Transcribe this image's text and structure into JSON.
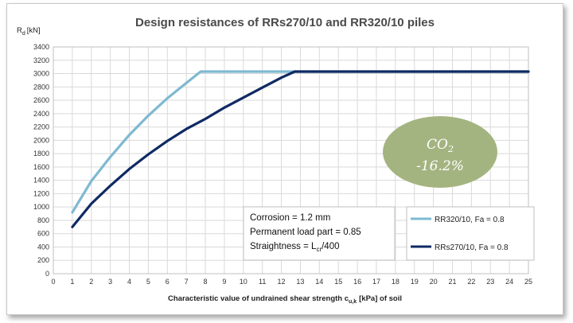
{
  "colors": {
    "rr320": "#7fb9d1",
    "rrs270": "#0f2a63",
    "grid": "#d9d9d9",
    "badge": "#a4b480"
  },
  "chart_data": {
    "type": "line",
    "title": "Design resistances of RRs270/10 and RR320/10 piles",
    "ylabel": "R",
    "ylabel_sub": "d",
    "ylabel_unit": "[kN]",
    "xlabel_pre": "Characteristic value of undrained shear strength c",
    "xlabel_sub": "u,k",
    "xlabel_post": "[kPa]  of soil",
    "xlim": [
      0,
      25
    ],
    "ylim": [
      0,
      3400
    ],
    "xticks": [
      0,
      1,
      2,
      3,
      4,
      5,
      6,
      7,
      8,
      9,
      10,
      11,
      12,
      13,
      14,
      15,
      16,
      17,
      18,
      19,
      20,
      21,
      22,
      23,
      24,
      25
    ],
    "yticks": [
      0,
      200,
      400,
      600,
      800,
      1000,
      1200,
      1400,
      1600,
      1800,
      2000,
      2200,
      2400,
      2600,
      2800,
      3000,
      3200,
      3400
    ],
    "grid": true,
    "series": [
      {
        "name": "RR320/10, Fa = 0.8",
        "color_key": "rr320",
        "x": [
          1,
          2,
          3,
          4,
          5,
          6,
          7,
          7.75,
          25
        ],
        "y": [
          920,
          1390,
          1750,
          2080,
          2370,
          2630,
          2860,
          3030,
          3030
        ]
      },
      {
        "name": "RRs270/10, Fa = 0.8",
        "color_key": "rrs270",
        "x": [
          1,
          2,
          3,
          4,
          5,
          6,
          7,
          8,
          9,
          10,
          11,
          12,
          12.7,
          25
        ],
        "y": [
          700,
          1050,
          1320,
          1570,
          1790,
          1990,
          2170,
          2320,
          2490,
          2640,
          2790,
          2940,
          3030,
          3030
        ]
      }
    ],
    "legend": {
      "placement": "bottom-right"
    },
    "annotation": {
      "line1": "Corrosion = 1.2 mm",
      "line2": "Permanent load part = 0.85",
      "line3_pre": "Straightness = L",
      "line3_sub": "cr",
      "line3_post": "/400"
    },
    "badge": {
      "line1_main": "CO",
      "line1_sub": "2",
      "line2": "-16.2%"
    }
  }
}
